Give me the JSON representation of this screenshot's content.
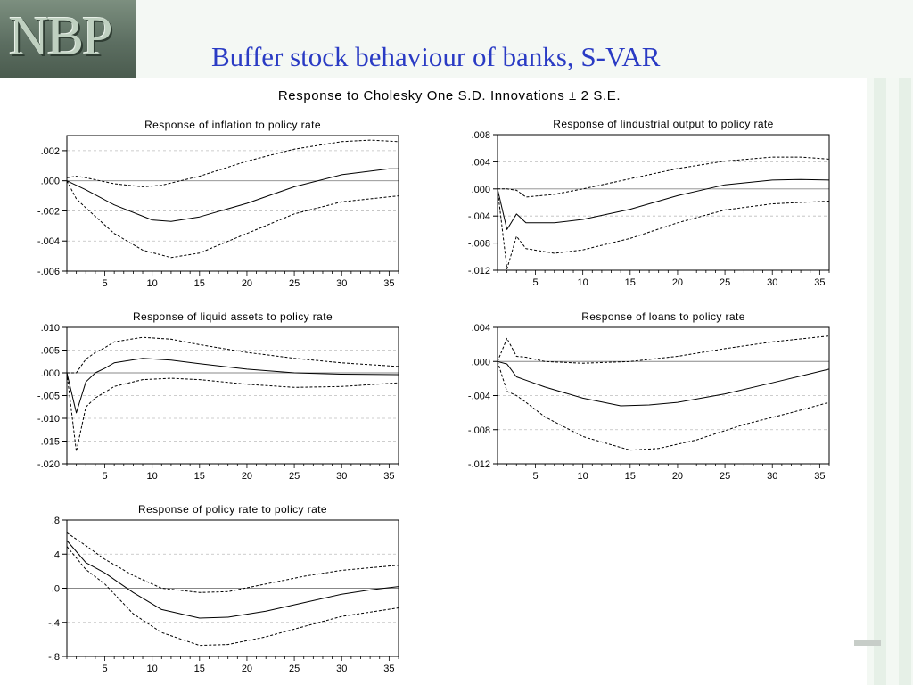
{
  "slide": {
    "logo": "NBP",
    "title": "Buffer stock behaviour of banks, S-VAR"
  },
  "figure": {
    "title": "Response to Cholesky One S.D. Innovations ± 2 S.E."
  },
  "chart_data": [
    {
      "type": "line",
      "title": "Response of inflation to policy rate",
      "xlim": [
        1,
        36
      ],
      "ylim": [
        -0.006,
        0.003
      ],
      "xticks": [
        5,
        10,
        15,
        20,
        25,
        30,
        35
      ],
      "xtick_labels": [
        "5",
        "10",
        "15",
        "20",
        "25",
        "30",
        "35"
      ],
      "yticks": [
        0.002,
        0.0,
        -0.002,
        -0.004,
        -0.006
      ],
      "ytick_labels": [
        ".002",
        ".000",
        "-.002",
        "-.004",
        "-.006"
      ],
      "grid": true,
      "series": [
        {
          "style": "solid",
          "points": [
            [
              1,
              0.0
            ],
            [
              3,
              -0.0006
            ],
            [
              6,
              -0.0016
            ],
            [
              10,
              -0.0026
            ],
            [
              12,
              -0.0027
            ],
            [
              15,
              -0.0024
            ],
            [
              20,
              -0.0015
            ],
            [
              25,
              -0.0004
            ],
            [
              30,
              0.0004
            ],
            [
              35,
              0.0008
            ],
            [
              36,
              0.0008
            ]
          ]
        },
        {
          "style": "dashed",
          "points": [
            [
              1,
              0.0002
            ],
            [
              2,
              0.0003
            ],
            [
              3,
              0.0002
            ],
            [
              6,
              -0.0002
            ],
            [
              9,
              -0.0004
            ],
            [
              11,
              -0.0003
            ],
            [
              15,
              0.0003
            ],
            [
              20,
              0.0013
            ],
            [
              25,
              0.0021
            ],
            [
              30,
              0.0026
            ],
            [
              33,
              0.0027
            ],
            [
              36,
              0.0026
            ]
          ]
        },
        {
          "style": "dashed",
          "points": [
            [
              1,
              0.0
            ],
            [
              2,
              -0.0012
            ],
            [
              3,
              -0.0018
            ],
            [
              6,
              -0.0035
            ],
            [
              9,
              -0.0046
            ],
            [
              12,
              -0.0051
            ],
            [
              15,
              -0.0048
            ],
            [
              20,
              -0.0035
            ],
            [
              25,
              -0.0022
            ],
            [
              30,
              -0.0014
            ],
            [
              36,
              -0.001
            ]
          ]
        }
      ]
    },
    {
      "type": "line",
      "title": "Response of lindustrial output to policy rate",
      "xlim": [
        1,
        36
      ],
      "ylim": [
        -0.012,
        0.008
      ],
      "xticks": [
        5,
        10,
        15,
        20,
        25,
        30,
        35
      ],
      "xtick_labels": [
        "5",
        "10",
        "15",
        "20",
        "25",
        "30",
        "35"
      ],
      "yticks": [
        0.008,
        0.004,
        0.0,
        -0.004,
        -0.008,
        -0.012
      ],
      "ytick_labels": [
        ".008",
        ".004",
        ".000",
        "-.004",
        "-.008",
        "-.012"
      ],
      "grid": true,
      "series": [
        {
          "style": "solid",
          "points": [
            [
              1,
              0.0
            ],
            [
              2,
              -0.006
            ],
            [
              3,
              -0.0037
            ],
            [
              4,
              -0.005
            ],
            [
              7,
              -0.005
            ],
            [
              10,
              -0.0045
            ],
            [
              15,
              -0.003
            ],
            [
              20,
              -0.001
            ],
            [
              25,
              0.0006
            ],
            [
              30,
              0.0013
            ],
            [
              33,
              0.0014
            ],
            [
              36,
              0.0013
            ]
          ]
        },
        {
          "style": "dashed",
          "points": [
            [
              1,
              0.0
            ],
            [
              2,
              0.0
            ],
            [
              3,
              -0.0002
            ],
            [
              4,
              -0.0012
            ],
            [
              7,
              -0.0008
            ],
            [
              10,
              0.0
            ],
            [
              15,
              0.0015
            ],
            [
              20,
              0.003
            ],
            [
              25,
              0.0041
            ],
            [
              30,
              0.0047
            ],
            [
              33,
              0.0047
            ],
            [
              36,
              0.0044
            ]
          ]
        },
        {
          "style": "dashed",
          "points": [
            [
              1,
              0.0
            ],
            [
              2,
              -0.0118
            ],
            [
              3,
              -0.007
            ],
            [
              4,
              -0.0088
            ],
            [
              7,
              -0.0095
            ],
            [
              10,
              -0.009
            ],
            [
              15,
              -0.0073
            ],
            [
              20,
              -0.005
            ],
            [
              25,
              -0.0031
            ],
            [
              30,
              -0.0022
            ],
            [
              36,
              -0.0018
            ]
          ]
        }
      ]
    },
    {
      "type": "line",
      "title": "Response of liquid assets to policy rate",
      "xlim": [
        1,
        36
      ],
      "ylim": [
        -0.02,
        0.01
      ],
      "xticks": [
        5,
        10,
        15,
        20,
        25,
        30,
        35
      ],
      "xtick_labels": [
        "5",
        "10",
        "15",
        "20",
        "25",
        "30",
        "35"
      ],
      "yticks": [
        0.01,
        0.005,
        0.0,
        -0.005,
        -0.01,
        -0.015,
        -0.02
      ],
      "ytick_labels": [
        ".010",
        ".005",
        ".000",
        "-.005",
        "-.010",
        "-.015",
        "-.020"
      ],
      "grid": true,
      "series": [
        {
          "style": "solid",
          "points": [
            [
              1,
              0.0
            ],
            [
              2,
              -0.0088
            ],
            [
              3,
              -0.002
            ],
            [
              4,
              0.0
            ],
            [
              5,
              0.001
            ],
            [
              6,
              0.0022
            ],
            [
              9,
              0.0032
            ],
            [
              12,
              0.0028
            ],
            [
              15,
              0.002
            ],
            [
              20,
              0.0008
            ],
            [
              25,
              0.0
            ],
            [
              30,
              -0.0003
            ],
            [
              36,
              -0.0004
            ]
          ]
        },
        {
          "style": "dashed",
          "points": [
            [
              1,
              0.0
            ],
            [
              2,
              0.0
            ],
            [
              3,
              0.003
            ],
            [
              4,
              0.0045
            ],
            [
              5,
              0.0055
            ],
            [
              6,
              0.0068
            ],
            [
              9,
              0.0078
            ],
            [
              12,
              0.0074
            ],
            [
              15,
              0.0062
            ],
            [
              20,
              0.0045
            ],
            [
              25,
              0.0032
            ],
            [
              30,
              0.0022
            ],
            [
              36,
              0.0014
            ]
          ]
        },
        {
          "style": "dashed",
          "points": [
            [
              1,
              0.0
            ],
            [
              2,
              -0.0173
            ],
            [
              3,
              -0.0075
            ],
            [
              4,
              -0.0055
            ],
            [
              5,
              -0.0043
            ],
            [
              6,
              -0.003
            ],
            [
              9,
              -0.0015
            ],
            [
              12,
              -0.0012
            ],
            [
              15,
              -0.0015
            ],
            [
              20,
              -0.0025
            ],
            [
              25,
              -0.0032
            ],
            [
              30,
              -0.003
            ],
            [
              36,
              -0.0022
            ]
          ]
        }
      ]
    },
    {
      "type": "line",
      "title": "Response of loans to policy rate",
      "xlim": [
        1,
        36
      ],
      "ylim": [
        -0.012,
        0.004
      ],
      "xticks": [
        5,
        10,
        15,
        20,
        25,
        30,
        35
      ],
      "xtick_labels": [
        "5",
        "10",
        "15",
        "20",
        "25",
        "30",
        "35"
      ],
      "yticks": [
        0.004,
        0.0,
        -0.004,
        -0.008,
        -0.012
      ],
      "ytick_labels": [
        ".004",
        ".000",
        "-.004",
        "-.008",
        "-.012"
      ],
      "grid": true,
      "series": [
        {
          "style": "solid",
          "points": [
            [
              1,
              0.0
            ],
            [
              2,
              -0.0003
            ],
            [
              3,
              -0.0018
            ],
            [
              4,
              -0.0022
            ],
            [
              6,
              -0.003
            ],
            [
              10,
              -0.0043
            ],
            [
              14,
              -0.0052
            ],
            [
              17,
              -0.0051
            ],
            [
              20,
              -0.0048
            ],
            [
              25,
              -0.0038
            ],
            [
              30,
              -0.0025
            ],
            [
              36,
              -0.0009
            ]
          ]
        },
        {
          "style": "dashed",
          "points": [
            [
              1,
              0.0
            ],
            [
              2,
              0.0027
            ],
            [
              3,
              0.0006
            ],
            [
              4,
              0.0005
            ],
            [
              6,
              0.0
            ],
            [
              10,
              -0.0002
            ],
            [
              15,
              0.0
            ],
            [
              20,
              0.0006
            ],
            [
              25,
              0.0015
            ],
            [
              30,
              0.0023
            ],
            [
              36,
              0.003
            ]
          ]
        },
        {
          "style": "dashed",
          "points": [
            [
              1,
              0.0
            ],
            [
              2,
              -0.0035
            ],
            [
              3,
              -0.004
            ],
            [
              4,
              -0.0048
            ],
            [
              6,
              -0.0065
            ],
            [
              10,
              -0.0088
            ],
            [
              15,
              -0.0104
            ],
            [
              18,
              -0.0102
            ],
            [
              22,
              -0.0092
            ],
            [
              27,
              -0.0074
            ],
            [
              32,
              -0.006
            ],
            [
              36,
              -0.0048
            ]
          ]
        }
      ]
    },
    {
      "type": "line",
      "title": "Response of policy rate to policy rate",
      "xlim": [
        1,
        36
      ],
      "ylim": [
        -0.8,
        0.8
      ],
      "xticks": [
        5,
        10,
        15,
        20,
        25,
        30,
        35
      ],
      "xtick_labels": [
        "5",
        "10",
        "15",
        "20",
        "25",
        "30",
        "35"
      ],
      "yticks": [
        0.8,
        0.4,
        0.0,
        -0.4,
        -0.8
      ],
      "ytick_labels": [
        ".8",
        ".4",
        ".0",
        "-.4",
        "-.8"
      ],
      "grid": true,
      "series": [
        {
          "style": "solid",
          "points": [
            [
              1,
              0.56
            ],
            [
              3,
              0.3
            ],
            [
              5,
              0.18
            ],
            [
              8,
              -0.05
            ],
            [
              11,
              -0.25
            ],
            [
              15,
              -0.35
            ],
            [
              18,
              -0.34
            ],
            [
              22,
              -0.27
            ],
            [
              26,
              -0.17
            ],
            [
              30,
              -0.07
            ],
            [
              33,
              -0.02
            ],
            [
              36,
              0.02
            ]
          ]
        },
        {
          "style": "dashed",
          "points": [
            [
              1,
              0.65
            ],
            [
              3,
              0.5
            ],
            [
              5,
              0.34
            ],
            [
              8,
              0.15
            ],
            [
              11,
              0.0
            ],
            [
              15,
              -0.05
            ],
            [
              18,
              -0.04
            ],
            [
              22,
              0.05
            ],
            [
              26,
              0.14
            ],
            [
              30,
              0.21
            ],
            [
              36,
              0.27
            ]
          ]
        },
        {
          "style": "dashed",
          "points": [
            [
              1,
              0.49
            ],
            [
              3,
              0.22
            ],
            [
              5,
              0.05
            ],
            [
              8,
              -0.3
            ],
            [
              11,
              -0.52
            ],
            [
              15,
              -0.67
            ],
            [
              18,
              -0.66
            ],
            [
              22,
              -0.57
            ],
            [
              26,
              -0.45
            ],
            [
              30,
              -0.33
            ],
            [
              36,
              -0.23
            ]
          ]
        }
      ]
    }
  ]
}
